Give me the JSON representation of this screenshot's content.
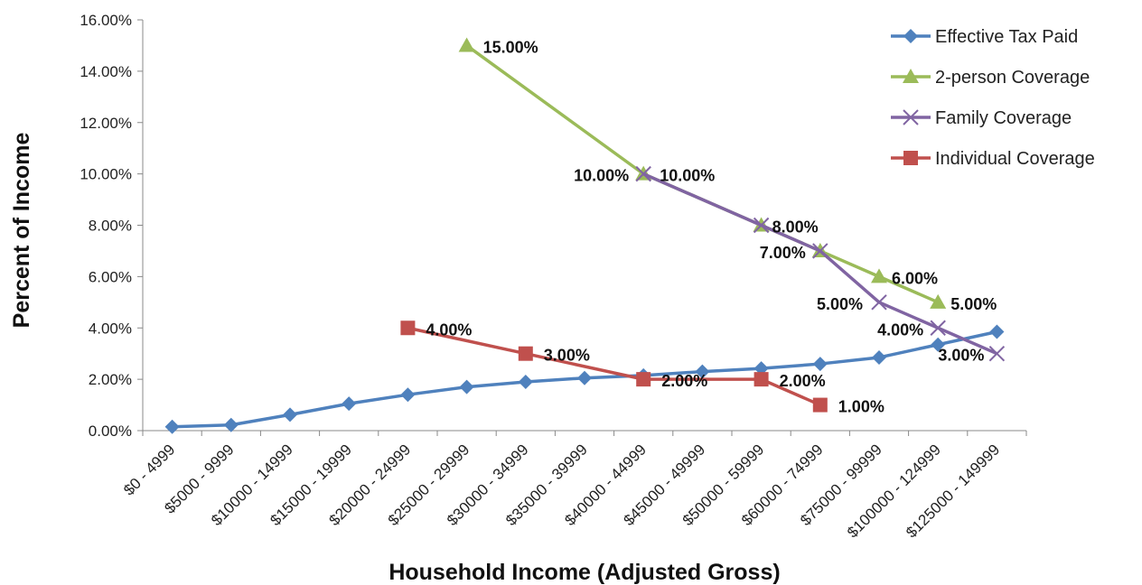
{
  "chart_data": {
    "type": "line",
    "xlabel": "Household Income (Adjusted Gross)",
    "ylabel": "Percent of Income",
    "ylim": [
      0,
      16
    ],
    "y_ticks": [
      "0.00%",
      "2.00%",
      "4.00%",
      "6.00%",
      "8.00%",
      "10.00%",
      "12.00%",
      "14.00%",
      "16.00%"
    ],
    "grid": false,
    "legend_position": "top-right",
    "categories": [
      "$0 - 4999",
      "$5000 - 9999",
      "$10000 - 14999",
      "$15000 - 19999",
      "$20000 - 24999",
      "$25000 - 29999",
      "$30000 - 34999",
      "$35000 - 39999",
      "$40000 - 44999",
      "$45000 - 49999",
      "$50000 - 59999",
      "$60000 - 74999",
      "$75000 - 99999",
      "$100000 - 124999",
      "$125000 - 149999"
    ],
    "series": [
      {
        "name": "Effective Tax Paid",
        "color": "#4f81bd",
        "marker": "diamond",
        "values": [
          0.15,
          0.22,
          0.62,
          1.05,
          1.4,
          1.7,
          1.9,
          2.05,
          2.15,
          2.3,
          2.42,
          2.6,
          2.85,
          3.35,
          3.85
        ],
        "labels": []
      },
      {
        "name": "2-person Coverage",
        "color": "#9bbb59",
        "marker": "triangle",
        "values": [
          null,
          null,
          null,
          null,
          null,
          15,
          null,
          null,
          10,
          null,
          8,
          7,
          6,
          5,
          null
        ],
        "labels": [
          {
            "index": 5,
            "text": "15.00%"
          },
          {
            "index": 8,
            "text": "10.00%"
          },
          {
            "index": 10,
            "text": "8.00%"
          },
          {
            "index": 12,
            "text": "6.00%"
          },
          {
            "index": 13,
            "text": "5.00%"
          }
        ]
      },
      {
        "name": "Family Coverage",
        "color": "#8064a2",
        "marker": "x",
        "values": [
          null,
          null,
          null,
          null,
          null,
          null,
          null,
          null,
          10,
          null,
          8,
          7,
          5,
          4,
          3
        ],
        "labels": [
          {
            "index": 8,
            "text": "10.00%"
          },
          {
            "index": 11,
            "text": "7.00%"
          },
          {
            "index": 12,
            "text": "5.00%"
          },
          {
            "index": 13,
            "text": "4.00%"
          },
          {
            "index": 14,
            "text": "3.00%"
          }
        ]
      },
      {
        "name": "Individual Coverage",
        "color": "#c0504d",
        "marker": "square",
        "values": [
          null,
          null,
          null,
          null,
          4,
          null,
          3,
          null,
          2,
          null,
          2,
          1,
          null,
          null,
          null
        ],
        "labels": [
          {
            "index": 4,
            "text": "4.00%"
          },
          {
            "index": 6,
            "text": "3.00%"
          },
          {
            "index": 8,
            "text": "2.00%"
          },
          {
            "index": 10,
            "text": "2.00%"
          },
          {
            "index": 11,
            "text": "1.00%"
          }
        ]
      }
    ]
  }
}
